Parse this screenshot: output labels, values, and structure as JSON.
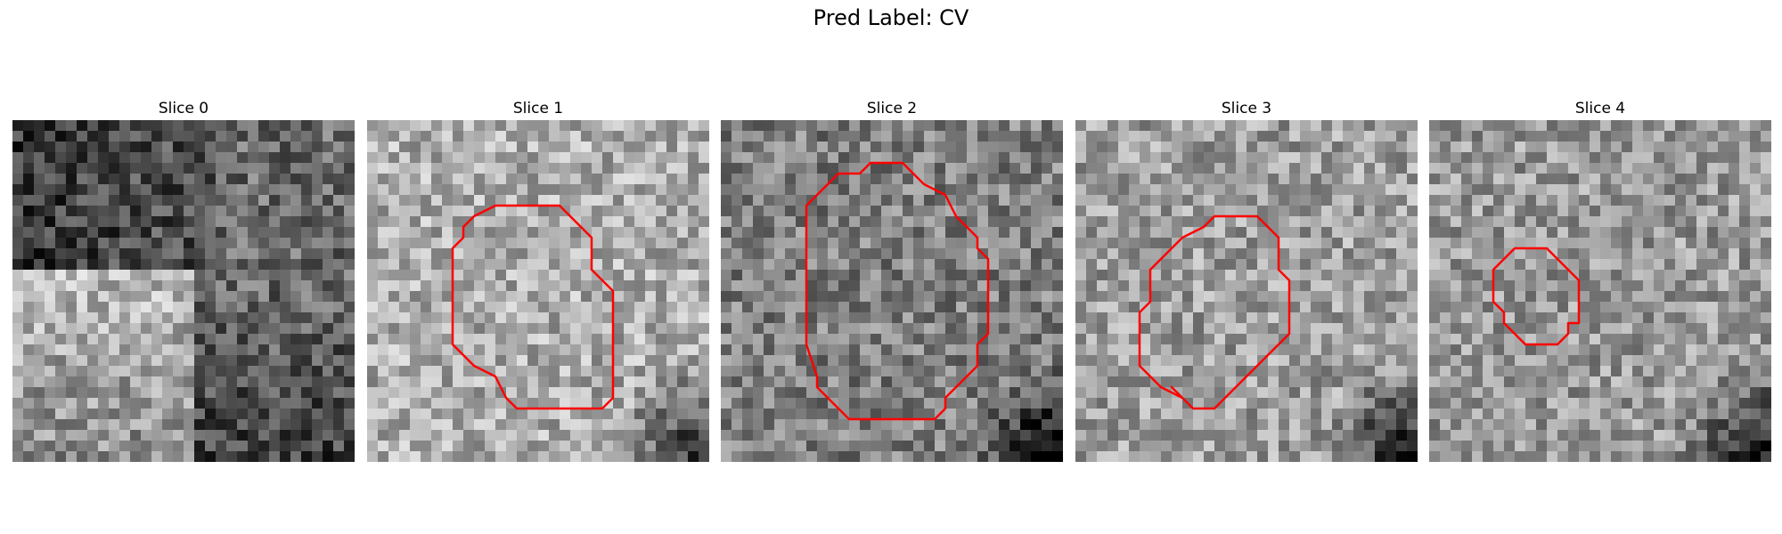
{
  "figure": {
    "title": "Pred Label: CV",
    "contour_color": "#ff0000"
  },
  "slices": [
    {
      "label": "Slice 0",
      "seed": 11,
      "base": 0.3,
      "has_contour": false,
      "contour": []
    },
    {
      "label": "Slice 1",
      "seed": 23,
      "base": 0.68,
      "has_contour": true,
      "contour": [
        [
          10,
          9
        ],
        [
          12,
          8
        ],
        [
          18,
          8
        ],
        [
          21,
          11
        ],
        [
          21,
          14
        ],
        [
          23,
          16
        ],
        [
          23,
          26
        ],
        [
          22,
          27
        ],
        [
          14,
          27
        ],
        [
          13,
          26
        ],
        [
          12,
          24
        ],
        [
          10,
          23
        ],
        [
          9,
          22
        ],
        [
          8,
          21
        ],
        [
          8,
          12
        ],
        [
          9,
          11
        ],
        [
          9,
          10
        ]
      ]
    },
    {
      "label": "Slice 2",
      "seed": 37,
      "base": 0.5,
      "has_contour": true,
      "contour": [
        [
          9,
          7
        ],
        [
          11,
          5
        ],
        [
          13,
          5
        ],
        [
          14,
          4
        ],
        [
          17,
          4
        ],
        [
          18,
          5
        ],
        [
          19,
          6
        ],
        [
          21,
          7
        ],
        [
          22,
          9
        ],
        [
          23,
          10
        ],
        [
          24,
          11
        ],
        [
          24,
          12
        ],
        [
          25,
          13
        ],
        [
          25,
          20
        ],
        [
          24,
          21
        ],
        [
          24,
          23
        ],
        [
          23,
          24
        ],
        [
          22,
          25
        ],
        [
          21,
          26
        ],
        [
          21,
          27
        ],
        [
          20,
          28
        ],
        [
          12,
          28
        ],
        [
          11,
          27
        ],
        [
          10,
          26
        ],
        [
          9,
          25
        ],
        [
          9,
          24
        ],
        [
          8,
          21
        ],
        [
          8,
          8
        ]
      ]
    },
    {
      "label": "Slice 3",
      "seed": 41,
      "base": 0.62,
      "has_contour": true,
      "contour": [
        [
          13,
          9
        ],
        [
          17,
          9
        ],
        [
          19,
          11
        ],
        [
          19,
          14
        ],
        [
          20,
          15
        ],
        [
          20,
          20
        ],
        [
          16,
          24
        ],
        [
          14,
          26
        ],
        [
          13,
          27
        ],
        [
          11,
          27
        ],
        [
          9,
          25
        ],
        [
          10,
          26
        ],
        [
          8,
          25
        ],
        [
          6,
          23
        ],
        [
          6,
          18
        ],
        [
          7,
          17
        ],
        [
          7,
          14
        ],
        [
          8,
          13
        ],
        [
          10,
          11
        ],
        [
          12,
          10
        ]
      ]
    },
    {
      "label": "Slice 4",
      "seed": 53,
      "base": 0.6,
      "has_contour": true,
      "contour": [
        [
          9,
          12
        ],
        [
          11,
          12
        ],
        [
          12,
          13
        ],
        [
          13,
          14
        ],
        [
          14,
          15
        ],
        [
          14,
          19
        ],
        [
          13,
          19
        ],
        [
          13,
          20
        ],
        [
          12,
          21
        ],
        [
          9,
          21
        ],
        [
          8,
          20
        ],
        [
          7,
          19
        ],
        [
          7,
          18
        ],
        [
          6,
          17
        ],
        [
          6,
          14
        ],
        [
          7,
          13
        ],
        [
          8,
          12
        ]
      ]
    }
  ]
}
